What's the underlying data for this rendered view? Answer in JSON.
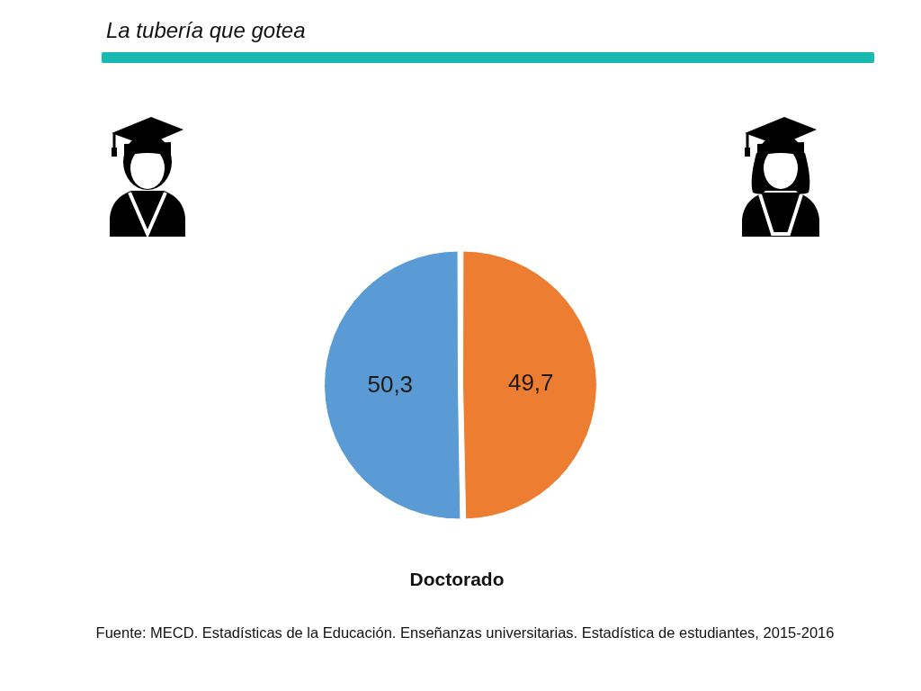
{
  "chart_data": {
    "type": "pie",
    "title": "La tubería que gotea",
    "subtitle": "Doctorado",
    "annotations": [
      "Fuente: MECD. Estadísticas de la Educación. Enseñanzas universitarias. Estadística de estudiantes, 2015-2016"
    ],
    "categories": [
      null,
      null
    ],
    "values": [
      50.3,
      49.7
    ],
    "colors": [
      "#5b9bd5",
      "#ed7d31"
    ],
    "value_labels": [
      "50,3",
      "49,7"
    ],
    "legend": false
  }
}
